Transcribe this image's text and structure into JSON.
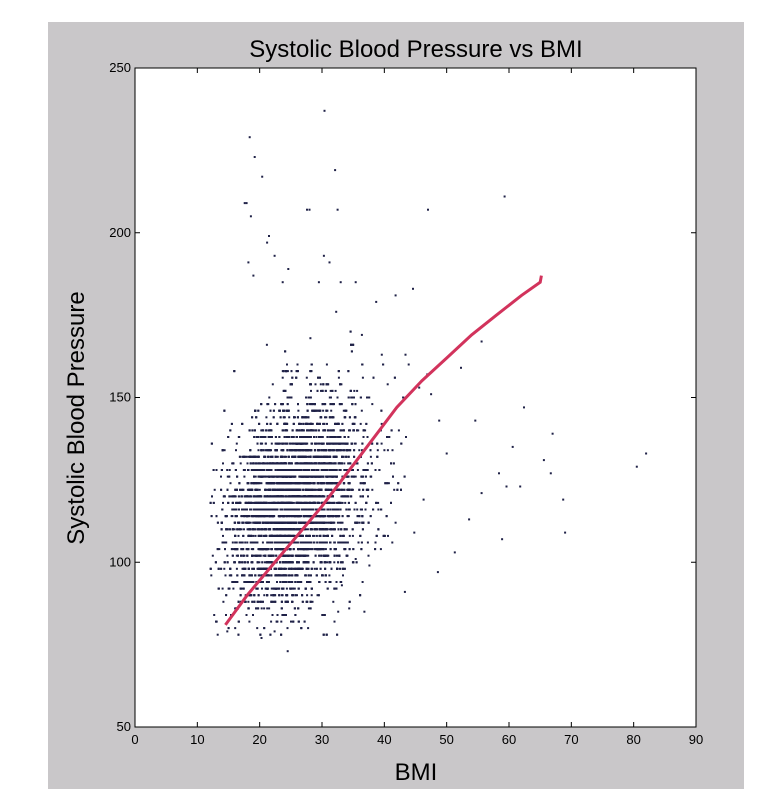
{
  "chart_data": {
    "type": "scatter",
    "title": "Systolic Blood Pressure vs BMI",
    "xlabel": "BMI",
    "ylabel": "Systolic Blood Pressure",
    "xlim": [
      0,
      90
    ],
    "ylim": [
      50,
      250
    ],
    "xticks": [
      0,
      10,
      20,
      30,
      40,
      50,
      60,
      70,
      80,
      90
    ],
    "yticks": [
      50,
      100,
      150,
      200,
      250
    ],
    "grid": false,
    "colors": {
      "points": "#1f2147",
      "fit_line": "#d2335c",
      "frame": "#c9c7c9",
      "plot_bg": "#ffffff"
    },
    "series": [
      {
        "kind": "points",
        "cloud": {
          "x_mean": 25.5,
          "x_sd": 5.5,
          "x_range": [
            12,
            48
          ],
          "y_mean": 118,
          "y_sd": 15,
          "y_range": [
            78,
            176
          ],
          "y_step": 2,
          "count": 6500
        },
        "outliers": [
          [
            18.4,
            229
          ],
          [
            19.2,
            223
          ],
          [
            20.4,
            217
          ],
          [
            17.6,
            209
          ],
          [
            17.9,
            209
          ],
          [
            18.6,
            205
          ],
          [
            30.4,
            237
          ],
          [
            32.1,
            219
          ],
          [
            27.6,
            207
          ],
          [
            28.0,
            207
          ],
          [
            32.5,
            207
          ],
          [
            21.2,
            197
          ],
          [
            21.5,
            199
          ],
          [
            22.4,
            193
          ],
          [
            18.2,
            191
          ],
          [
            19.0,
            187
          ],
          [
            24.6,
            189
          ],
          [
            31.2,
            191
          ],
          [
            29.5,
            185
          ],
          [
            33.0,
            185
          ],
          [
            35.4,
            185
          ],
          [
            23.7,
            185
          ],
          [
            30.3,
            193
          ],
          [
            47.0,
            207
          ],
          [
            59.3,
            211
          ],
          [
            44.6,
            183
          ],
          [
            41.8,
            181
          ],
          [
            38.7,
            179
          ],
          [
            36.4,
            169
          ],
          [
            39.6,
            163
          ],
          [
            43.4,
            163
          ],
          [
            45.6,
            153
          ],
          [
            46.9,
            157
          ],
          [
            52.3,
            159
          ],
          [
            54.6,
            143
          ],
          [
            55.6,
            167
          ],
          [
            62.4,
            147
          ],
          [
            67.0,
            139
          ],
          [
            65.6,
            131
          ],
          [
            66.7,
            127
          ],
          [
            61.8,
            123
          ],
          [
            59.6,
            123
          ],
          [
            58.4,
            127
          ],
          [
            55.6,
            121
          ],
          [
            53.6,
            113
          ],
          [
            58.9,
            107
          ],
          [
            60.6,
            135
          ],
          [
            69.0,
            109
          ],
          [
            68.7,
            119
          ],
          [
            82.0,
            133
          ],
          [
            80.5,
            129
          ],
          [
            50.0,
            133
          ],
          [
            48.8,
            143
          ],
          [
            47.5,
            151
          ],
          [
            46.3,
            119
          ],
          [
            44.8,
            109
          ],
          [
            48.6,
            97
          ],
          [
            51.3,
            103
          ],
          [
            43.3,
            91
          ],
          [
            37.6,
            99
          ],
          [
            35.4,
            101
          ],
          [
            33.2,
            93
          ],
          [
            36.8,
            85
          ],
          [
            32.6,
            85
          ],
          [
            24.5,
            73
          ],
          [
            16.6,
            78
          ],
          [
            14.8,
            79
          ],
          [
            13.1,
            82
          ],
          [
            12.7,
            84
          ],
          [
            19.6,
            80
          ],
          [
            22.4,
            79
          ],
          [
            20.3,
            77
          ]
        ]
      },
      {
        "kind": "fit_line",
        "points": [
          [
            14.5,
            81
          ],
          [
            18,
            90
          ],
          [
            22,
            99
          ],
          [
            26,
            108
          ],
          [
            30,
            117
          ],
          [
            34,
            127
          ],
          [
            38,
            137
          ],
          [
            42,
            147
          ],
          [
            46,
            155
          ],
          [
            50,
            162
          ],
          [
            54,
            169
          ],
          [
            58,
            175
          ],
          [
            62,
            181
          ],
          [
            65,
            185
          ],
          [
            65.2,
            187
          ]
        ]
      }
    ]
  }
}
